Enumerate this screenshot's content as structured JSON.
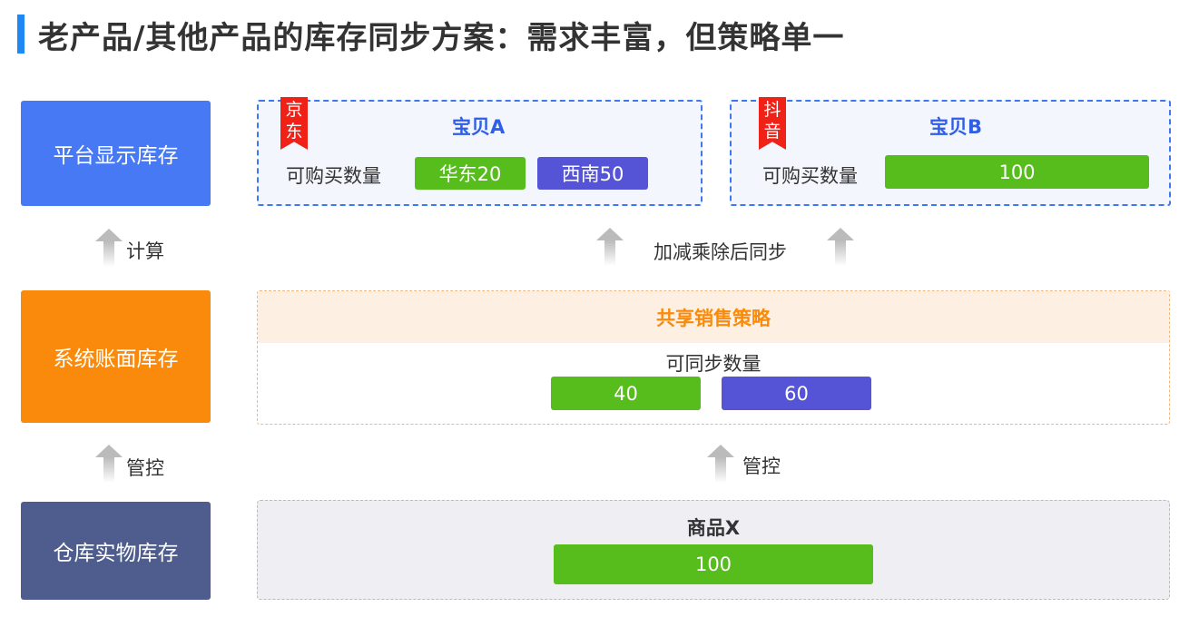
{
  "title": "老产品/其他产品的库存同步方案：需求丰富，但策略单一",
  "left_boxes": [
    {
      "label": "平台显示库存",
      "color": "#4779f5"
    },
    {
      "label": "系统账面库存",
      "color": "#f98a0b"
    },
    {
      "label": "仓库实物库存",
      "color": "#4e5d8e"
    }
  ],
  "left_arrows": [
    "计算",
    "管控"
  ],
  "platform": {
    "cards": [
      {
        "tag": "京东",
        "name": "宝贝A",
        "qty_label": "可购买数量",
        "pills": [
          {
            "label": "华东20",
            "color": "#56bd1c"
          },
          {
            "label": "西南50",
            "color": "#5554d6"
          }
        ]
      },
      {
        "tag": "抖音",
        "name": "宝贝B",
        "qty_label": "可购买数量",
        "pills": [
          {
            "label": "100",
            "color": "#56bd1c"
          }
        ]
      }
    ]
  },
  "sync_arrow": "加减乘除后同步",
  "shared": {
    "title": "共享销售策略",
    "qty_label": "可同步数量",
    "values": [
      "40",
      "60"
    ]
  },
  "control_arrow": "管控",
  "warehouse": {
    "name": "商品X",
    "value": "100"
  }
}
